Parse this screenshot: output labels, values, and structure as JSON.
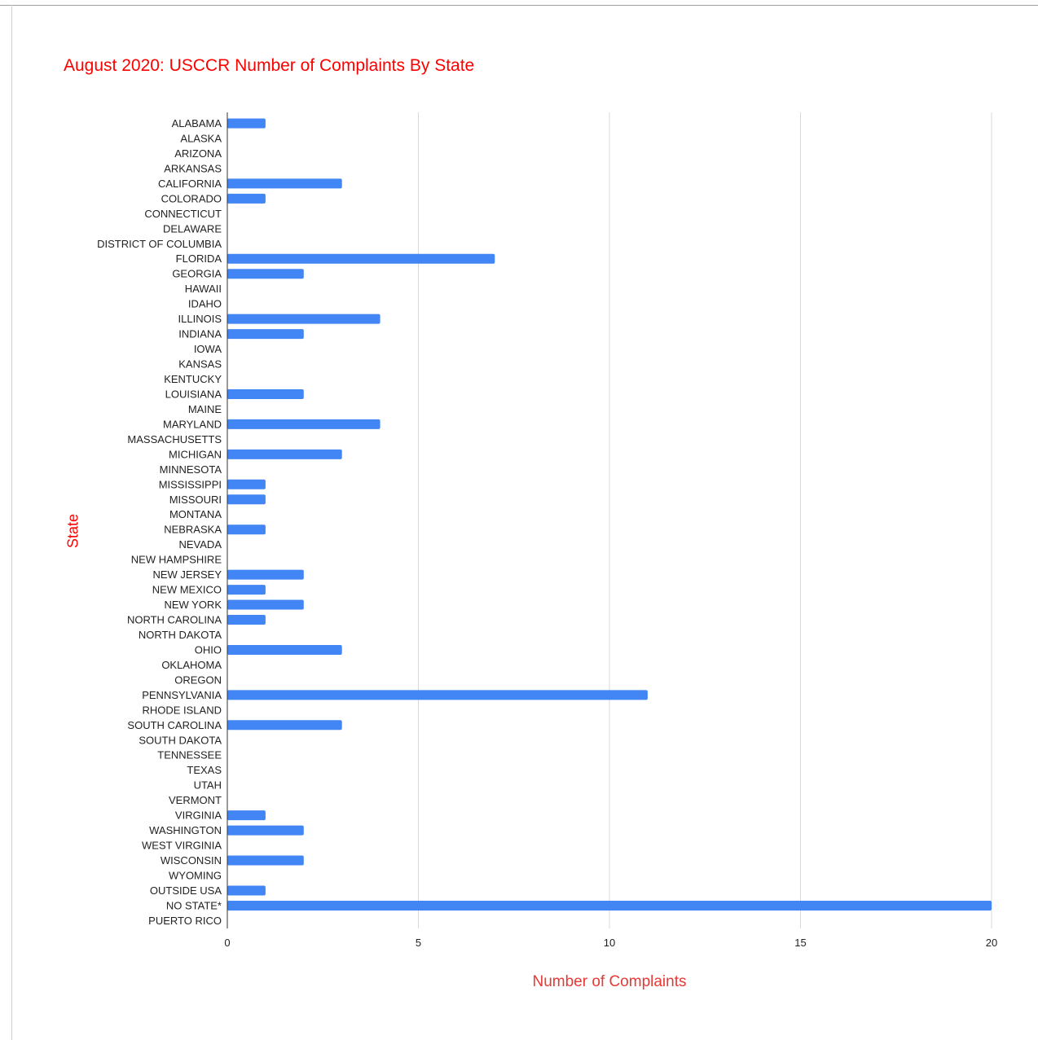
{
  "chart_data": {
    "type": "bar",
    "orientation": "horizontal",
    "title": "August 2020: USCCR Number of Complaints By State",
    "xlabel": "Number of Complaints",
    "ylabel": "State",
    "xlim": [
      0,
      20
    ],
    "x_ticks": [
      "0",
      "5",
      "10",
      "15",
      "20"
    ],
    "grid": true,
    "legend": "none",
    "bar_color": "#4285f4",
    "title_color": "#ff0000",
    "categories": [
      "ALABAMA",
      "ALASKA",
      "ARIZONA",
      "ARKANSAS",
      "CALIFORNIA",
      "COLORADO",
      "CONNECTICUT",
      "DELAWARE",
      "DISTRICT OF COLUMBIA",
      "FLORIDA",
      "GEORGIA",
      "HAWAII",
      "IDAHO",
      "ILLINOIS",
      "INDIANA",
      "IOWA",
      "KANSAS",
      "KENTUCKY",
      "LOUISIANA",
      "MAINE",
      "MARYLAND",
      "MASSACHUSETTS",
      "MICHIGAN",
      "MINNESOTA",
      "MISSISSIPPI",
      "MISSOURI",
      "MONTANA",
      "NEBRASKA",
      "NEVADA",
      "NEW HAMPSHIRE",
      "NEW JERSEY",
      "NEW MEXICO",
      "NEW YORK",
      "NORTH CAROLINA",
      "NORTH DAKOTA",
      "OHIO",
      "OKLAHOMA",
      "OREGON",
      "PENNSYLVANIA",
      "RHODE ISLAND",
      "SOUTH CAROLINA",
      "SOUTH DAKOTA",
      "TENNESSEE",
      "TEXAS",
      "UTAH",
      "VERMONT",
      "VIRGINIA",
      "WASHINGTON",
      "WEST VIRGINIA",
      "WISCONSIN",
      "WYOMING",
      "OUTSIDE USA",
      "NO STATE*",
      "PUERTO RICO"
    ],
    "values": [
      1,
      0,
      0,
      0,
      3,
      1,
      0,
      0,
      0,
      7,
      2,
      0,
      0,
      4,
      2,
      0,
      0,
      0,
      2,
      0,
      4,
      0,
      3,
      0,
      1,
      1,
      0,
      1,
      0,
      0,
      2,
      1,
      2,
      1,
      0,
      3,
      0,
      0,
      11,
      0,
      3,
      0,
      0,
      0,
      0,
      0,
      1,
      2,
      0,
      2,
      0,
      1,
      20,
      0
    ]
  }
}
